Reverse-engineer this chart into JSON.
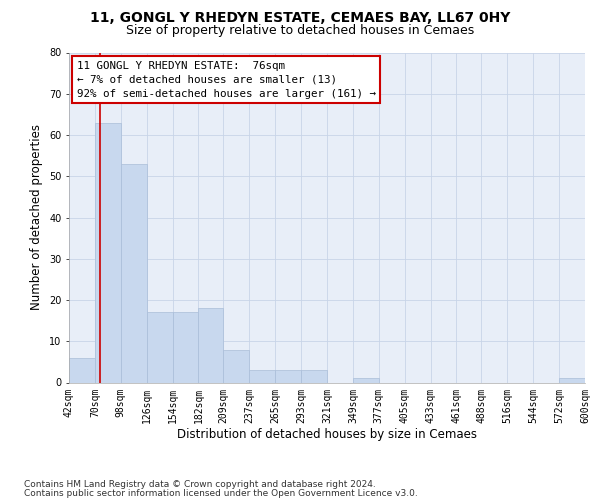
{
  "title1": "11, GONGL Y RHEDYN ESTATE, CEMAES BAY, LL67 0HY",
  "title2": "Size of property relative to detached houses in Cemaes",
  "xlabel": "Distribution of detached houses by size in Cemaes",
  "ylabel": "Number of detached properties",
  "footnote1": "Contains HM Land Registry data © Crown copyright and database right 2024.",
  "footnote2": "Contains public sector information licensed under the Open Government Licence v3.0.",
  "bar_color": "#c8d8ee",
  "bar_edge_color": "#aabdd8",
  "vline_color": "#cc0000",
  "vline_x": 76,
  "annotation_title": "11 GONGL Y RHEDYN ESTATE:  76sqm",
  "annotation_line2": "← 7% of detached houses are smaller (13)",
  "annotation_line3": "92% of semi-detached houses are larger (161) →",
  "annotation_box_color": "#ffffff",
  "annotation_border_color": "#cc0000",
  "bin_edges": [
    42,
    70,
    98,
    126,
    154,
    182,
    209,
    237,
    265,
    293,
    321,
    349,
    377,
    405,
    433,
    461,
    488,
    516,
    544,
    572,
    600
  ],
  "bar_heights": [
    6,
    63,
    53,
    17,
    17,
    18,
    8,
    3,
    3,
    3,
    0,
    1,
    0,
    0,
    0,
    0,
    0,
    0,
    0,
    1
  ],
  "ylim": [
    0,
    80
  ],
  "yticks": [
    0,
    10,
    20,
    30,
    40,
    50,
    60,
    70,
    80
  ],
  "grid_color": "#c8d4e8",
  "bg_color": "#e8eef8",
  "tick_label_fontsize": 7,
  "axis_label_fontsize": 8.5,
  "title_fontsize1": 10,
  "title_fontsize2": 9,
  "footnote_fontsize": 6.5
}
